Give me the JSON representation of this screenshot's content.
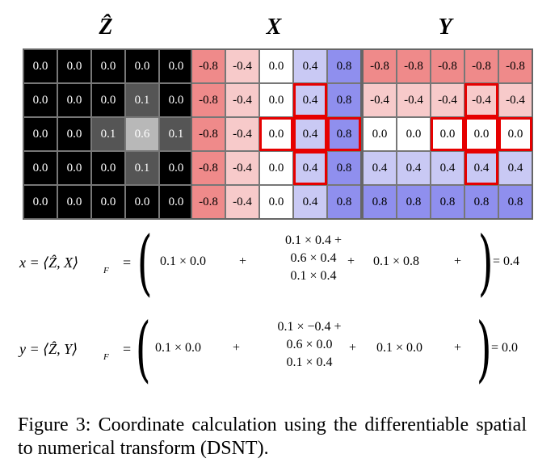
{
  "grids": {
    "z": {
      "title": "Ẑ",
      "cells": [
        [
          "0.0",
          "0.0",
          "0.0",
          "0.0",
          "0.0"
        ],
        [
          "0.0",
          "0.0",
          "0.0",
          "0.1",
          "0.0"
        ],
        [
          "0.0",
          "0.0",
          "0.1",
          "0.6",
          "0.1"
        ],
        [
          "0.0",
          "0.0",
          "0.0",
          "0.1",
          "0.0"
        ],
        [
          "0.0",
          "0.0",
          "0.0",
          "0.0",
          "0.0"
        ]
      ]
    },
    "x": {
      "title": "X",
      "cells": [
        [
          "-0.8",
          "-0.4",
          "0.0",
          "0.4",
          "0.8"
        ],
        [
          "-0.8",
          "-0.4",
          "0.0",
          "0.4",
          "0.8"
        ],
        [
          "-0.8",
          "-0.4",
          "0.0",
          "0.4",
          "0.8"
        ],
        [
          "-0.8",
          "-0.4",
          "0.0",
          "0.4",
          "0.8"
        ],
        [
          "-0.8",
          "-0.4",
          "0.0",
          "0.4",
          "0.8"
        ]
      ]
    },
    "y": {
      "title": "Y",
      "cells": [
        [
          "-0.8",
          "-0.8",
          "-0.8",
          "-0.8",
          "-0.8"
        ],
        [
          "-0.4",
          "-0.4",
          "-0.4",
          "-0.4",
          "-0.4"
        ],
        [
          "0.0",
          "0.0",
          "0.0",
          "0.0",
          "0.0"
        ],
        [
          "0.4",
          "0.4",
          "0.4",
          "0.4",
          "0.4"
        ],
        [
          "0.8",
          "0.8",
          "0.8",
          "0.8",
          "0.8"
        ]
      ]
    }
  },
  "colors": {
    "z_values": {
      "0.0": "#000000",
      "0.1": "#555555",
      "0.6": "#b8b8b8"
    },
    "coord_values": {
      "-0.8": "#ef8a8a",
      "-0.4": "#f7caca",
      "0.0": "#ffffff",
      "0.4": "#c9c9f4",
      "0.8": "#8f8fee"
    },
    "highlight": "#e60000"
  },
  "equation_x": {
    "lhs": "x = ⟨Ẑ, X⟩",
    "sub": "F",
    "eq": "=",
    "term1": "0.1 × 0.0",
    "plus1": "+",
    "stack": [
      "0.1 × 0.4   +",
      "0.6 × 0.4",
      "0.1 × 0.4"
    ],
    "plus2": "+",
    "term3": "0.1 × 0.8",
    "plus3": "+",
    "result": "= 0.4"
  },
  "equation_y": {
    "lhs": "y = ⟨Ẑ, Y⟩",
    "sub": "F",
    "eq": "=",
    "term1": "0.1 × 0.0",
    "plus1": "+",
    "stack": [
      "0.1 × −0.4   +",
      "0.6 × 0.0",
      "0.1 × 0.4"
    ],
    "plus2": "+",
    "term3": "0.1 × 0.0",
    "plus3": "+",
    "result": "= 0.0"
  },
  "caption": "Figure 3: Coordinate calculation using the differentiable spatial to numerical transform (DSNT)."
}
